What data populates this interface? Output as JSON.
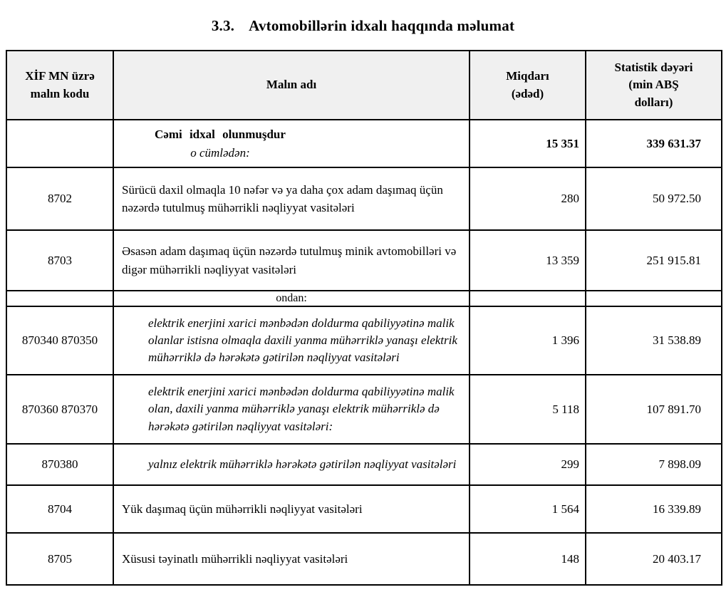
{
  "page": {
    "title_number": "3.3.",
    "title_text": "Avtomobillərin idxalı haqqında məlumat"
  },
  "table": {
    "headers": {
      "code": "XİF MN üzrə\nmalın kodu",
      "name": "Malın adı",
      "qty": "Miqdarı\n(ədəd)",
      "value": "Statistik dəyəri\n(min ABŞ\ndolları)"
    },
    "rows": [
      {
        "style": "total",
        "code": "",
        "name": "Cəmi idxal olunmuşdur",
        "name2": "o cümlədən:",
        "qty": "15 351",
        "value": "339 631.37"
      },
      {
        "style": "normal",
        "code": "8702",
        "name": "Sürücü daxil olmaqla 10 nəfər və ya daha çox adam daşımaq üçün nəzərdə tutulmuş mühərrikli nəqliyyat vasitələri",
        "qty": "280",
        "value": "50 972.50"
      },
      {
        "style": "normal",
        "code": "8703",
        "name": "Əsasən adam daşımaq üçün nəzərdə tutulmuş minik avtomobilləri və digər mühərrikli nəqliyyat vasitələri",
        "qty": "13 359",
        "value": "251 915.81"
      },
      {
        "style": "section",
        "code": "",
        "name": "ondan:",
        "qty": "",
        "value": ""
      },
      {
        "style": "italic",
        "code": "870340 870350",
        "name": "elektrik enerjini xarici mənbədən doldurma qabiliyyətinə malik olanlar istisna olmaqla daxili yanma mühərriklə yanaşı elektrik mühərriklə də hərəkətə gətirilən nəqliyyat vasitələri",
        "qty": "1 396",
        "value": "31 538.89"
      },
      {
        "style": "italic",
        "code": "870360 870370",
        "name": "elektrik enerjini xarici mənbədən doldurma qabiliyyətinə malik olan, daxili yanma mühərriklə yanaşı elektrik mühərriklə də hərəkətə gətirilən nəqliyyat vasitələri:",
        "qty": "5 118",
        "value": "107 891.70"
      },
      {
        "style": "italic",
        "code": "870380",
        "name": "yalnız elektrik mühərriklə hərəkətə gətirilən nəqliyyat vasitələri",
        "qty": "299",
        "value": "7 898.09"
      },
      {
        "style": "normal",
        "code": "8704",
        "name": "Yük daşımaq üçün mühərrikli nəqliyyat vasitələri",
        "qty": "1 564",
        "value": "16 339.89"
      },
      {
        "style": "normal",
        "code": "8705",
        "name": "Xüsusi təyinatlı mühərrikli nəqliyyat vasitələri",
        "qty": "148",
        "value": "20 403.17"
      }
    ],
    "colors": {
      "header_bg": "#f0f0f0",
      "border": "#000000"
    }
  }
}
